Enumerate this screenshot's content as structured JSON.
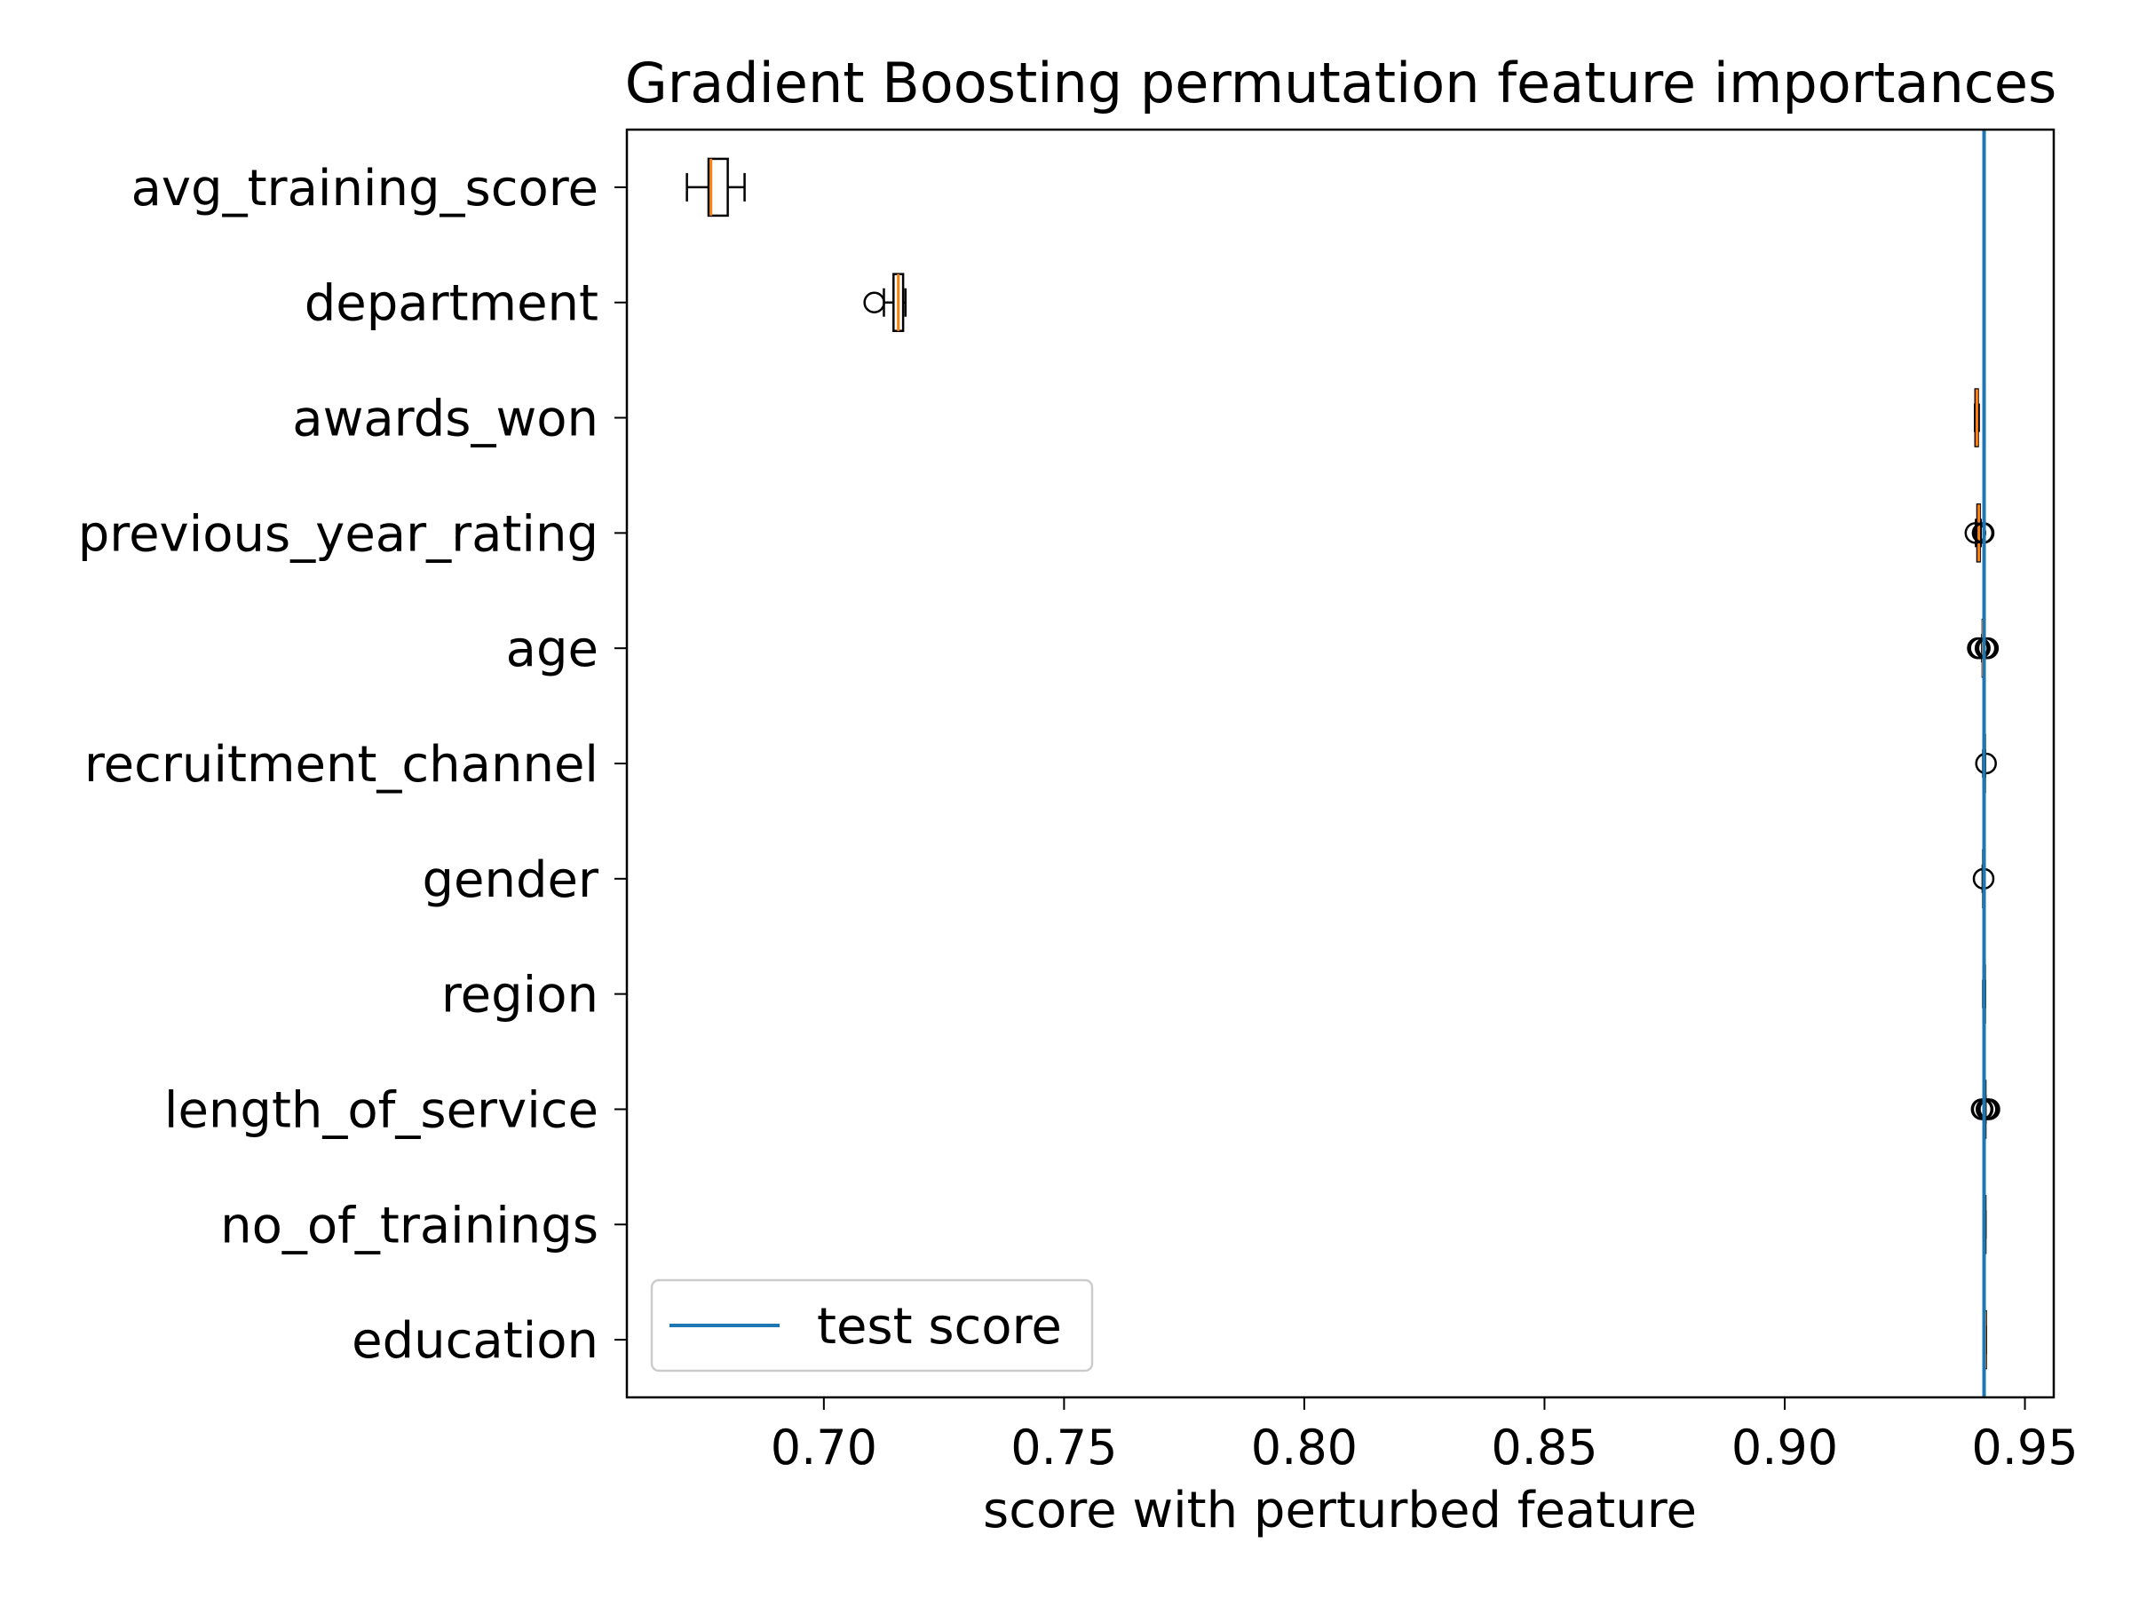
{
  "chart_data": {
    "type": "box",
    "orientation": "horizontal",
    "title": "Gradient Boosting permutation feature importances",
    "xlabel": "score with perturbed feature",
    "ylabel": "",
    "xlim": [
      0.659,
      0.956
    ],
    "xticks": [
      0.7,
      0.75,
      0.8,
      0.85,
      0.9,
      0.95
    ],
    "xtick_labels": [
      "0.70",
      "0.75",
      "0.80",
      "0.85",
      "0.90",
      "0.95"
    ],
    "grid": false,
    "legend": {
      "location": "lower-left",
      "entries": [
        {
          "label": "test score",
          "color": "#1f77b4"
        }
      ]
    },
    "reference_line": {
      "name": "test score",
      "x": 0.9415,
      "color": "#1f77b4"
    },
    "box_color": "#000000",
    "median_color": "#ff7f0e",
    "features": [
      {
        "name": "avg_training_score",
        "whisker_low": 0.6715,
        "q1": 0.676,
        "median": 0.6765,
        "q3": 0.68,
        "whisker_high": 0.6835,
        "outliers": []
      },
      {
        "name": "department",
        "whisker_low": 0.7125,
        "q1": 0.7145,
        "median": 0.7155,
        "q3": 0.7165,
        "whisker_high": 0.717,
        "outliers": [
          0.7105
        ]
      },
      {
        "name": "awards_won",
        "whisker_low": 0.9396,
        "q1": 0.9397,
        "median": 0.94,
        "q3": 0.9402,
        "whisker_high": 0.9404,
        "outliers": []
      },
      {
        "name": "previous_year_rating",
        "whisker_low": 0.9398,
        "q1": 0.9401,
        "median": 0.9404,
        "q3": 0.9406,
        "whisker_high": 0.9408,
        "outliers": [
          0.9397,
          0.9412,
          0.9414
        ]
      },
      {
        "name": "age",
        "whisker_low": 0.9411,
        "q1": 0.9412,
        "median": 0.9413,
        "q3": 0.9414,
        "whisker_high": 0.9415,
        "outliers": [
          0.9402,
          0.9404,
          0.9406,
          0.9418,
          0.9421,
          0.9423
        ]
      },
      {
        "name": "recruitment_channel",
        "whisker_low": 0.9413,
        "q1": 0.9414,
        "median": 0.9415,
        "q3": 0.9416,
        "whisker_high": 0.9417,
        "outliers": [
          0.9419
        ]
      },
      {
        "name": "gender",
        "whisker_low": 0.9412,
        "q1": 0.9413,
        "median": 0.9414,
        "q3": 0.9415,
        "whisker_high": 0.9416,
        "outliers": [
          0.9414
        ]
      },
      {
        "name": "region",
        "whisker_low": 0.9413,
        "q1": 0.9414,
        "median": 0.9415,
        "q3": 0.9416,
        "whisker_high": 0.9417,
        "outliers": []
      },
      {
        "name": "length_of_service",
        "whisker_low": 0.9414,
        "q1": 0.9415,
        "median": 0.9416,
        "q3": 0.9417,
        "whisker_high": 0.9418,
        "outliers": [
          0.941,
          0.9412,
          0.942,
          0.9422,
          0.9424,
          0.9426
        ]
      },
      {
        "name": "no_of_trainings",
        "whisker_low": 0.9414,
        "q1": 0.9415,
        "median": 0.9416,
        "q3": 0.9417,
        "whisker_high": 0.9418,
        "outliers": []
      },
      {
        "name": "education",
        "whisker_low": 0.9415,
        "q1": 0.9416,
        "median": 0.9417,
        "q3": 0.9418,
        "whisker_high": 0.9419,
        "outliers": []
      }
    ]
  }
}
